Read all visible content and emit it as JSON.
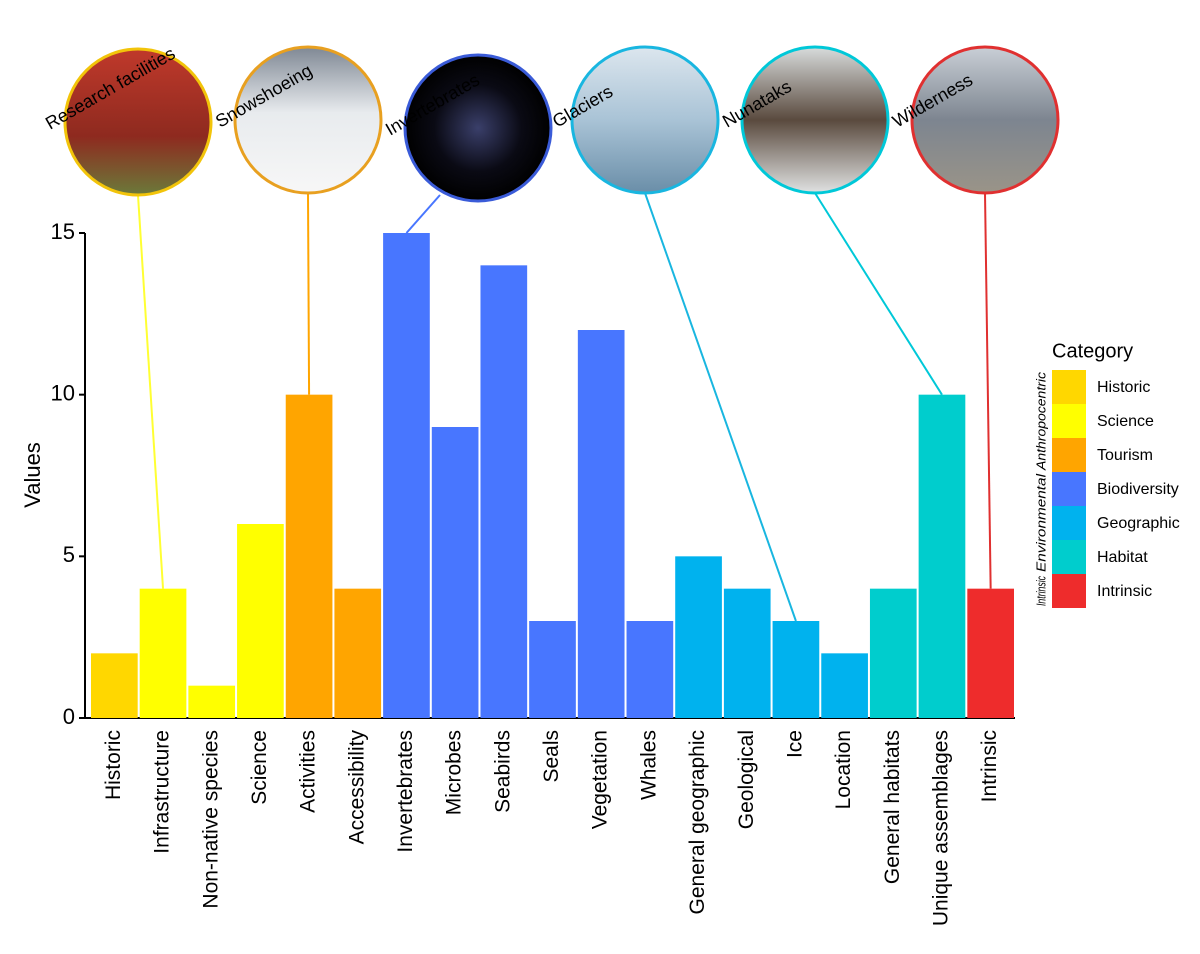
{
  "chart_data": {
    "type": "bar",
    "y_label": "Values",
    "categories": [
      "Historic",
      "Infrastructure",
      "Non-native species",
      "Science",
      "Activities",
      "Accessibility",
      "Invertebrates",
      "Microbes",
      "Seabirds",
      "Seals",
      "Vegetation",
      "Whales",
      "General geographic",
      "Geological",
      "Ice",
      "Location",
      "General habitats",
      "Unique assemblages",
      "Intrinsic"
    ],
    "series": [
      {
        "name": "Historic",
        "color": "#FFD700",
        "values": [
          2,
          null,
          null,
          null,
          null,
          null,
          null,
          null,
          null,
          null,
          null,
          null,
          null,
          null,
          null,
          null,
          null,
          null,
          null
        ]
      },
      {
        "name": "Science",
        "color": "#FFFF00",
        "values": [
          null,
          4,
          1,
          6,
          null,
          null,
          null,
          null,
          null,
          null,
          null,
          null,
          null,
          null,
          null,
          null,
          null,
          null,
          null
        ]
      },
      {
        "name": "Tourism",
        "color": "#FFA500",
        "values": [
          null,
          null,
          null,
          null,
          10,
          4,
          null,
          null,
          null,
          null,
          null,
          null,
          null,
          null,
          null,
          null,
          null,
          null,
          null
        ]
      },
      {
        "name": "Biodiversity",
        "color": "#4876FF",
        "values": [
          null,
          null,
          null,
          null,
          null,
          null,
          15,
          9,
          14,
          3,
          12,
          3,
          null,
          null,
          null,
          null,
          null,
          null,
          null
        ]
      },
      {
        "name": "Geographic",
        "color": "#00B2EE",
        "values": [
          null,
          null,
          null,
          null,
          null,
          null,
          null,
          null,
          null,
          null,
          null,
          null,
          5,
          4,
          3,
          2,
          null,
          null,
          null
        ]
      },
      {
        "name": "Habitat",
        "color": "#00CDCD",
        "values": [
          null,
          null,
          null,
          null,
          null,
          null,
          null,
          null,
          null,
          null,
          null,
          null,
          null,
          null,
          null,
          null,
          4,
          10,
          null
        ]
      },
      {
        "name": "Intrinsic",
        "color": "#EE2C2C",
        "values": [
          null,
          null,
          null,
          null,
          null,
          null,
          null,
          null,
          null,
          null,
          null,
          null,
          null,
          null,
          null,
          null,
          null,
          null,
          4
        ]
      }
    ],
    "ylim": [
      0,
      15
    ],
    "yticks": [
      0,
      5,
      10,
      15
    ],
    "grid": false,
    "legend_title": "Category",
    "legend_groups": [
      "Anthropocentric",
      "Environmental",
      "Intrinsic"
    ],
    "annotations": [
      "Research facilities",
      "Snowshoeing",
      "Invertebrates",
      "Glaciers",
      "Nunataks",
      "Wilderness"
    ]
  }
}
